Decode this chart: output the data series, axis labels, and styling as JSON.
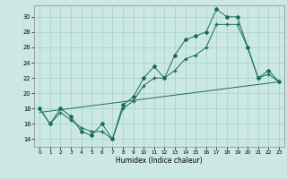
{
  "xlabel": "Humidex (Indice chaleur)",
  "bg_color": "#cce8e5",
  "grid_color": "#aad4d0",
  "line_color": "#1a6b5a",
  "xlim": [
    -0.5,
    23.5
  ],
  "ylim": [
    13.0,
    31.5
  ],
  "yticks": [
    14,
    16,
    18,
    20,
    22,
    24,
    26,
    28,
    30
  ],
  "xticks": [
    0,
    1,
    2,
    3,
    4,
    5,
    6,
    7,
    8,
    9,
    10,
    11,
    12,
    13,
    14,
    15,
    16,
    17,
    18,
    19,
    20,
    21,
    22,
    23
  ],
  "series1_x": [
    0,
    1,
    2,
    3,
    4,
    5,
    6,
    7,
    8,
    9,
    10,
    11,
    12,
    13,
    14,
    15,
    16,
    17,
    18,
    19,
    20,
    21,
    22,
    23
  ],
  "series1_y": [
    18,
    16,
    18,
    17,
    15,
    14.5,
    16,
    14,
    18.5,
    19.5,
    22,
    23.5,
    22,
    25,
    27,
    27.5,
    28,
    31,
    30,
    30,
    26,
    22,
    23,
    21.5
  ],
  "series2_x": [
    0,
    1,
    2,
    3,
    4,
    5,
    6,
    7,
    8,
    9,
    10,
    11,
    12,
    13,
    14,
    15,
    16,
    17,
    18,
    19,
    20,
    21,
    22,
    23
  ],
  "series2_y": [
    18,
    16,
    17.5,
    16.5,
    15.5,
    15,
    15,
    14,
    18,
    19,
    21,
    22,
    22,
    23,
    24.5,
    25,
    26,
    29,
    29,
    29,
    26,
    22,
    22.5,
    21.5
  ],
  "series3_x": [
    0,
    23
  ],
  "series3_y": [
    17.5,
    21.5
  ]
}
